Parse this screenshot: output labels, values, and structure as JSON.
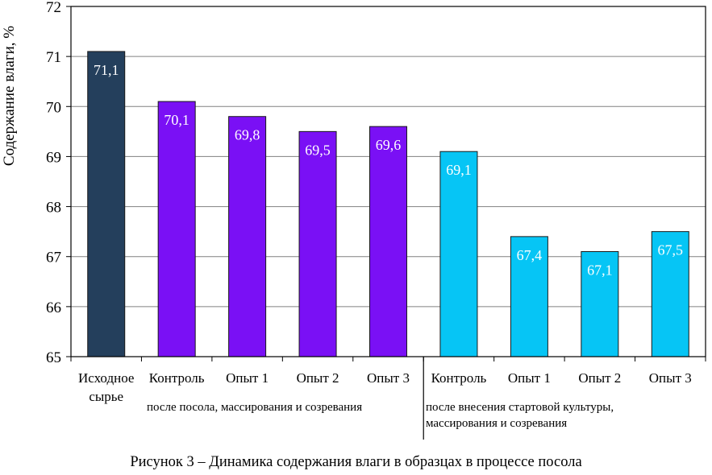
{
  "chart_data": {
    "type": "bar",
    "ylabel": "Содержание влаги, %",
    "ylim": [
      65,
      72
    ],
    "yticks": [
      "65",
      "66",
      "67",
      "68",
      "69",
      "70",
      "71",
      "72"
    ],
    "grid": true,
    "categories": [
      "Исходное сырье",
      "Контроль",
      "Опыт 1",
      "Опыт 2",
      "Опыт 3",
      "Контроль",
      "Опыт 1",
      "Опыт 2",
      "Опыт 3"
    ],
    "category_lines": [
      [
        "Исходное",
        "сырье"
      ],
      [
        "Контроль"
      ],
      [
        "Опыт 1"
      ],
      [
        "Опыт 2"
      ],
      [
        "Опыт 3"
      ],
      [
        "Контроль"
      ],
      [
        "Опыт 1"
      ],
      [
        "Опыт 2"
      ],
      [
        "Опыт 3"
      ]
    ],
    "values": [
      71.1,
      70.1,
      69.8,
      69.5,
      69.6,
      69.1,
      67.4,
      67.1,
      67.5
    ],
    "value_labels": [
      "71,1",
      "70,1",
      "69,8",
      "69,5",
      "69,6",
      "69,1",
      "67,4",
      "67,1",
      "67,5"
    ],
    "bar_colors": [
      "#243f5c",
      "#7a10f5",
      "#7a10f5",
      "#7a10f5",
      "#7a10f5",
      "#06c5f5",
      "#06c5f5",
      "#06c5f5",
      "#06c5f5"
    ],
    "groups": [
      {
        "lines": [
          "после посола, массирования и созревания"
        ]
      },
      {
        "lines": [
          "после внесения стартовой культуры,",
          "массирования и созревания"
        ]
      }
    ]
  },
  "caption": "Рисунок 3 – Динамика содержания влаги в образцах в процессе посола"
}
